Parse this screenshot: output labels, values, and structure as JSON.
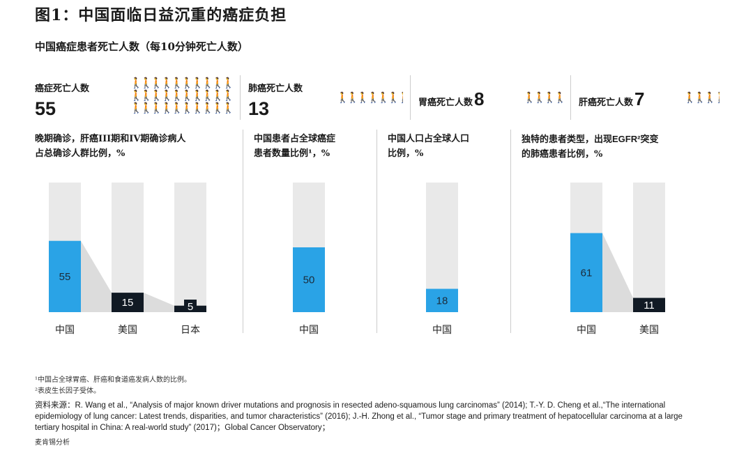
{
  "title": "图1：中国面临日益沉重的癌症负担",
  "subtitle": "中国癌症患者死亡人数（每10分钟死亡人数）",
  "deaths": [
    {
      "label": "癌症死亡人数",
      "value": "55"
    },
    {
      "label": "肺癌死亡人数",
      "value": "13"
    },
    {
      "label": "胃癌死亡人数",
      "value": "8"
    },
    {
      "label": "肝癌死亡人数",
      "value": "7"
    }
  ],
  "person_glyph": "🚶",
  "panels": [
    {
      "title_a": "晚期确诊，肝癌III期和IV期确诊病人",
      "title_b": "占总确诊人群比例，%"
    },
    {
      "title_a": "中国患者占全球癌症",
      "title_b": "患者数量比例¹，%"
    },
    {
      "title_a": "中国人口占全球人口",
      "title_b": "比例，%"
    },
    {
      "title_a_pre": "独特的患者类型，出现",
      "title_a_en": "EGFR²",
      "title_a_post": "突变",
      "title_b": "的肺癌患者比例，%"
    }
  ],
  "chart_data": [
    {
      "type": "bar",
      "title": "晚期确诊，肝癌III期和IV期确诊病人占总确诊人群比例，%",
      "categories": [
        "中国",
        "美国",
        "日本"
      ],
      "values": [
        55,
        15,
        5
      ],
      "ylim": [
        0,
        100
      ]
    },
    {
      "type": "bar",
      "title": "中国患者占全球癌症患者数量比例¹，%",
      "categories": [
        "中国"
      ],
      "values": [
        50
      ],
      "ylim": [
        0,
        100
      ]
    },
    {
      "type": "bar",
      "title": "中国人口占全球人口比例，%",
      "categories": [
        "中国"
      ],
      "values": [
        18
      ],
      "ylim": [
        0,
        100
      ]
    },
    {
      "type": "bar",
      "title": "独特的患者类型，出现EGFR²突变的肺癌患者比例，%",
      "categories": [
        "中国",
        "美国"
      ],
      "values": [
        61,
        11
      ],
      "ylim": [
        0,
        100
      ]
    }
  ],
  "colors": {
    "china": "#2aa3e6",
    "other": "#111a24",
    "track": "#e9e9e9",
    "connector": "#dcdcdc"
  },
  "footnotes": [
    "¹中国占全球胃癌、肝癌和食道癌发病人数的比例。",
    "²表皮生长因子受体。"
  ],
  "source": "资料来源：R. Wang et al., “Analysis of major known driver mutations and prognosis in resected adeno-squamous lung carcinomas” (2014); T.-Y. D. Cheng et al.,“The international epidemiology of lung cancer: Latest trends, disparities, and tumor characteristics” (2016); J.-H. Zhong et al., “Tumor stage and primary treatment of hepatocellular carcinoma at a large tertiary hospital in China: A real-world study” (2017)；Global Cancer Observatory；",
  "credit": "麦肯锡分析"
}
